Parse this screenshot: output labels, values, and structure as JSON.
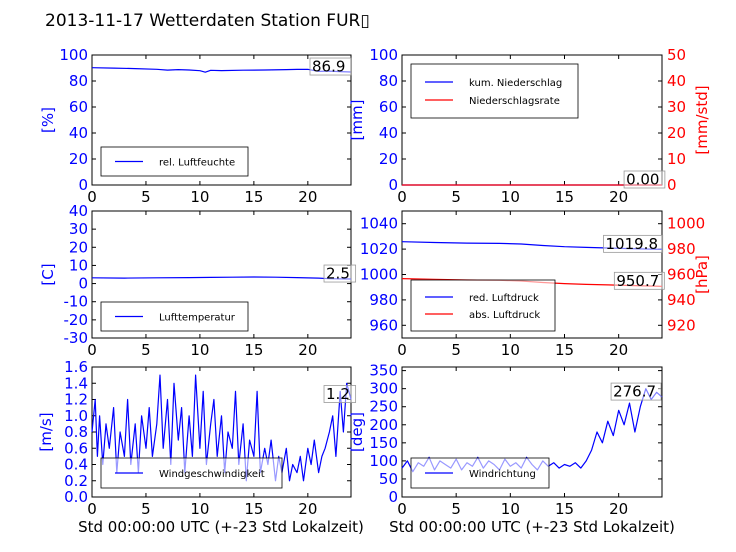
{
  "title": "2013-11-17 Wetterdaten Station FUR▯",
  "xlabel": "Std 00:00:00 UTC (+-23 Std Lokalzeit)",
  "colors": {
    "blue": "#0000ff",
    "red": "#ff0000",
    "black": "#000000"
  },
  "chart_data": [
    {
      "id": "humidity",
      "type": "line",
      "ylabel": "[%]",
      "xlim": [
        0,
        24
      ],
      "ylim": [
        0,
        100
      ],
      "xticks": [
        0,
        5,
        10,
        15,
        20
      ],
      "yticks": [
        0,
        20,
        40,
        60,
        80,
        100
      ],
      "legend": "bottom-left",
      "annotation": "86.9",
      "series": [
        {
          "name": "rel. Luftfeuchte",
          "color": "#0000ff",
          "x": [
            0,
            2,
            4,
            6,
            7,
            8,
            9,
            10,
            10.5,
            11,
            12,
            14,
            16,
            18,
            19,
            20,
            21,
            22,
            23,
            24
          ],
          "y": [
            90.2,
            89.9,
            89.5,
            89.0,
            88.4,
            88.8,
            88.5,
            87.9,
            86.8,
            88.2,
            88.0,
            88.3,
            88.5,
            88.8,
            88.9,
            89.0,
            87.4,
            87.6,
            87.2,
            86.9
          ]
        }
      ]
    },
    {
      "id": "precip",
      "type": "line",
      "ylabel": "[mm]",
      "ylabel_right": "[mm/std]",
      "xlim": [
        0,
        24
      ],
      "ylim": [
        0,
        100
      ],
      "ylim_right": [
        0,
        50
      ],
      "xticks": [
        0,
        5,
        10,
        15,
        20
      ],
      "yticks": [
        0,
        20,
        40,
        60,
        80,
        100
      ],
      "yticks_right": [
        0,
        10,
        20,
        30,
        40,
        50
      ],
      "legend": "top-left",
      "annotation": "0.00",
      "series": [
        {
          "name": "kum. Niederschlag",
          "color": "#0000ff",
          "x": [
            0,
            24
          ],
          "y": [
            0,
            0
          ]
        },
        {
          "name": "Niederschlagsrate",
          "color": "#ff0000",
          "x": [
            0,
            24
          ],
          "y": [
            0,
            0
          ]
        }
      ]
    },
    {
      "id": "temp",
      "type": "line",
      "ylabel": "[C]",
      "xlim": [
        0,
        24
      ],
      "ylim": [
        -30,
        40
      ],
      "xticks": [
        0,
        5,
        10,
        15,
        20
      ],
      "yticks": [
        -30,
        -20,
        -10,
        0,
        10,
        20,
        30,
        40
      ],
      "legend": "bottom-left",
      "annotation": "2.5",
      "series": [
        {
          "name": "Lufttemperatur",
          "color": "#0000ff",
          "x": [
            0,
            3,
            6,
            9,
            11,
            13,
            15,
            17,
            19,
            21,
            22,
            23,
            24
          ],
          "y": [
            3.2,
            3.0,
            3.2,
            3.3,
            3.4,
            3.5,
            3.6,
            3.5,
            3.3,
            3.0,
            2.7,
            2.6,
            2.5
          ]
        }
      ]
    },
    {
      "id": "pressure",
      "type": "line",
      "ylabel_right": "[hPa]",
      "xlim": [
        0,
        24
      ],
      "ylim": [
        950,
        1050
      ],
      "ylim_right": [
        910,
        1010
      ],
      "xticks": [
        0,
        5,
        10,
        15,
        20
      ],
      "yticks": [
        960,
        980,
        1000,
        1020,
        1040
      ],
      "yticks_right": [
        920,
        940,
        960,
        980,
        1000
      ],
      "legend": "bottom-left",
      "annotations": [
        "1019.8",
        "950.7"
      ],
      "series": [
        {
          "name": "red. Luftdruck",
          "color": "#0000ff",
          "axis": "left",
          "x": [
            0,
            3,
            6,
            9,
            11,
            13,
            15,
            17,
            19,
            21,
            24
          ],
          "y": [
            1025.8,
            1025.2,
            1024.7,
            1024.5,
            1024.0,
            1022.8,
            1021.9,
            1021.3,
            1020.9,
            1020.4,
            1019.8
          ]
        },
        {
          "name": "abs. Luftdruck",
          "color": "#ff0000",
          "axis": "right",
          "x": [
            0,
            3,
            6,
            9,
            11,
            13,
            15,
            17,
            19,
            21,
            24
          ],
          "y": [
            956.8,
            956.2,
            955.7,
            955.4,
            954.9,
            953.7,
            952.8,
            952.2,
            951.8,
            951.3,
            950.7
          ]
        }
      ]
    },
    {
      "id": "wind",
      "type": "line",
      "ylabel": "[m/s]",
      "xlim": [
        0,
        24
      ],
      "ylim": [
        0,
        1.6
      ],
      "xticks": [
        0,
        5,
        10,
        15,
        20
      ],
      "yticks": [
        0.0,
        0.2,
        0.4,
        0.6,
        0.8,
        1.0,
        1.2,
        1.4,
        1.6
      ],
      "legend": "bottom-left",
      "annotation": "1.2",
      "series": [
        {
          "name": "Windgeschwindigkeit",
          "color": "#0000ff",
          "x": [
            0,
            0.3,
            0.5,
            0.7,
            1.0,
            1.3,
            1.6,
            2.0,
            2.3,
            2.6,
            3.0,
            3.3,
            3.6,
            4.0,
            4.3,
            4.6,
            5.0,
            5.3,
            5.6,
            6.0,
            6.3,
            6.6,
            7.0,
            7.3,
            7.6,
            8.0,
            8.3,
            8.6,
            9.0,
            9.3,
            9.6,
            10.0,
            10.3,
            10.6,
            11.0,
            11.3,
            11.6,
            12.0,
            12.3,
            12.6,
            13.0,
            13.3,
            13.6,
            14.0,
            14.3,
            14.6,
            15.0,
            15.3,
            15.6,
            16.0,
            16.3,
            16.6,
            17.0,
            17.3,
            17.6,
            18.0,
            18.3,
            18.6,
            19.0,
            19.3,
            19.6,
            20.0,
            20.3,
            20.6,
            21.0,
            21.3,
            21.6,
            22.0,
            22.3,
            22.6,
            23.0,
            23.3,
            23.6,
            24.0
          ],
          "y": [
            0.8,
            1.2,
            0.5,
            1.0,
            0.4,
            0.9,
            0.6,
            1.1,
            0.3,
            0.8,
            0.5,
            1.2,
            0.4,
            0.9,
            0.3,
            1.0,
            0.6,
            1.1,
            0.5,
            0.9,
            1.5,
            0.6,
            1.2,
            0.4,
            1.4,
            0.7,
            1.1,
            0.3,
            1.0,
            0.5,
            1.5,
            0.6,
            1.3,
            0.4,
            0.9,
            1.2,
            0.5,
            1.0,
            0.3,
            0.8,
            0.6,
            1.3,
            0.4,
            0.9,
            0.2,
            0.7,
            0.5,
            1.3,
            0.3,
            0.6,
            0.4,
            0.7,
            0.2,
            0.5,
            0.3,
            0.6,
            0.2,
            0.4,
            0.3,
            0.5,
            0.2,
            0.6,
            0.4,
            0.7,
            0.3,
            0.5,
            0.6,
            0.8,
            1.0,
            0.5,
            1.3,
            0.8,
            1.4,
            1.2
          ]
        }
      ]
    },
    {
      "id": "winddir",
      "type": "line",
      "ylabel": "[deg]",
      "xlim": [
        0,
        24
      ],
      "ylim": [
        0,
        360
      ],
      "xticks": [
        0,
        5,
        10,
        15,
        20
      ],
      "yticks": [
        0,
        50,
        100,
        150,
        200,
        250,
        300,
        350
      ],
      "legend": "bottom-left",
      "annotation": "276.7",
      "series": [
        {
          "name": "Windrichtung",
          "color": "#0000ff",
          "x": [
            0,
            0.5,
            1,
            1.5,
            2,
            2.5,
            3,
            3.5,
            4,
            4.5,
            5,
            5.5,
            6,
            6.5,
            7,
            7.5,
            8,
            8.5,
            9,
            9.5,
            10,
            10.5,
            11,
            11.5,
            12,
            12.5,
            13,
            13.5,
            14,
            14.5,
            15,
            15.5,
            16,
            16.5,
            17,
            17.5,
            18,
            18.5,
            19,
            19.5,
            20,
            20.5,
            21,
            21.5,
            22,
            22.5,
            23,
            23.5,
            24
          ],
          "y": [
            80,
            100,
            70,
            95,
            85,
            110,
            75,
            100,
            90,
            80,
            105,
            75,
            95,
            85,
            110,
            80,
            100,
            90,
            75,
            105,
            85,
            95,
            80,
            110,
            90,
            75,
            100,
            85,
            95,
            80,
            90,
            85,
            95,
            80,
            100,
            130,
            180,
            150,
            210,
            170,
            240,
            200,
            260,
            180,
            250,
            300,
            270,
            290,
            277
          ]
        }
      ]
    }
  ]
}
